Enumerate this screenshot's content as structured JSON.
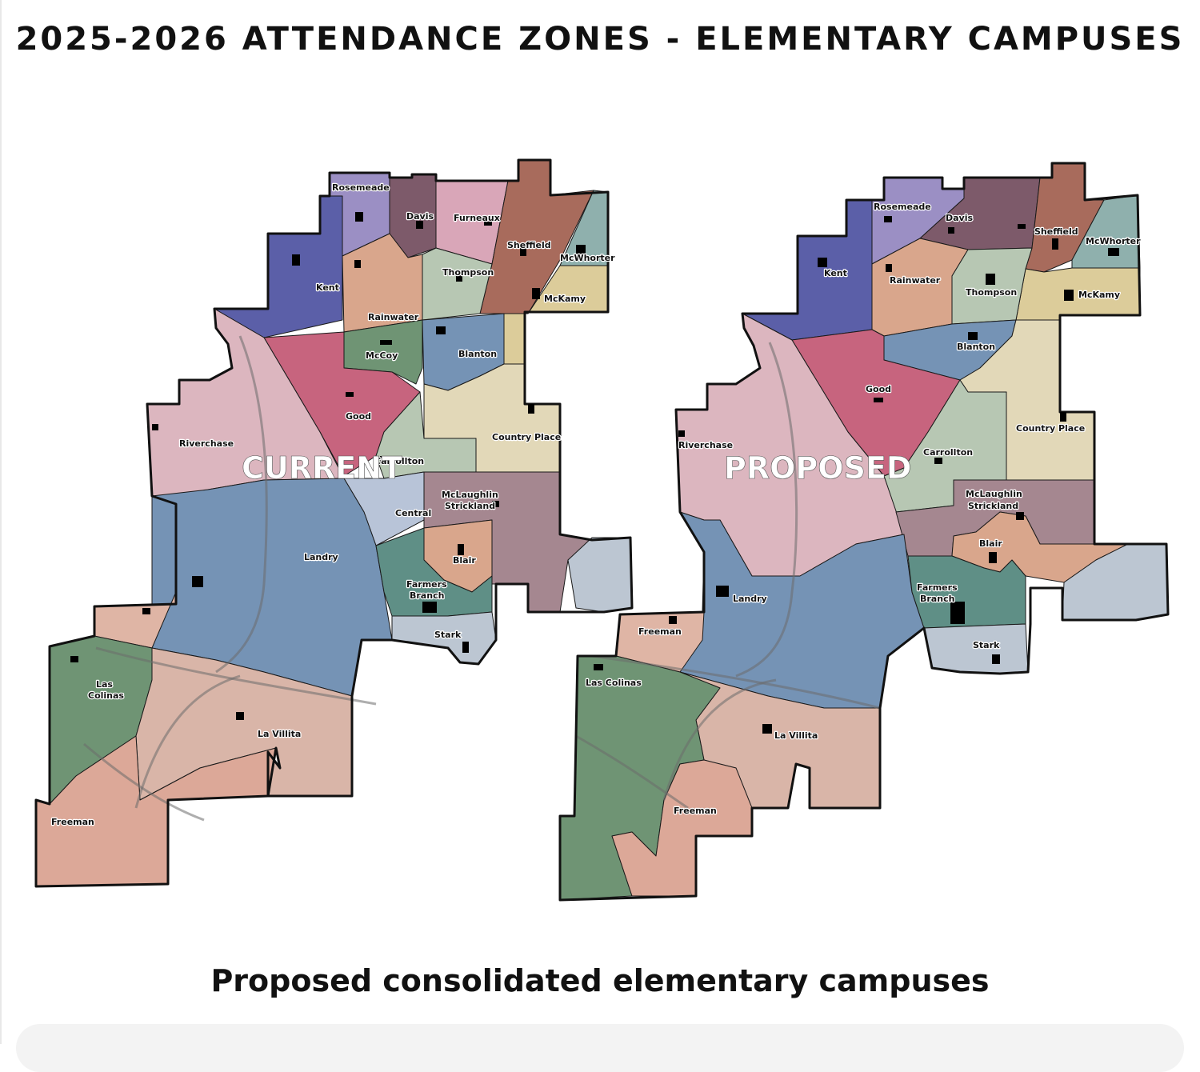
{
  "title": "2025-2026 ATTENDANCE ZONES - ELEMENTARY CAMPUSES",
  "caption": "Proposed consolidated elementary campuses",
  "maps": {
    "current": {
      "label": "CURRENT",
      "zones": {
        "rosemeade": "Rosemeade",
        "davis": "Davis",
        "furneaux": "Furneaux",
        "sheffield": "Sheffield",
        "mcwhorter": "McWhorter",
        "kent": "Kent",
        "thompson": "Thompson",
        "mckamy": "McKamy",
        "rainwater": "Rainwater",
        "mccoy": "McCoy",
        "blanton": "Blanton",
        "good": "Good",
        "riverchase": "Riverchase",
        "country_place": "Country Place",
        "carrollton": "Carrollton",
        "central": "Central",
        "mclaughlin_1": "McLaughlin",
        "mclaughlin_2": "Strickland",
        "blair": "Blair",
        "landry": "Landry",
        "farmers_branch_1": "Farmers",
        "farmers_branch_2": "Branch",
        "stark": "Stark",
        "las_colinas_1": "Las",
        "las_colinas_2": "Colinas",
        "la_villita": "La Villita",
        "freeman": "Freeman"
      }
    },
    "proposed": {
      "label": "PROPOSED",
      "zones": {
        "rosemeade": "Rosemeade",
        "davis": "Davis",
        "sheffield": "Sheffield",
        "mcwhorter": "McWhorter",
        "kent": "Kent",
        "rainwater": "Rainwater",
        "thompson": "Thompson",
        "mckamy": "McKamy",
        "blanton": "Blanton",
        "good": "Good",
        "riverchase": "Riverchase",
        "country_place": "Country Place",
        "carrollton": "Carrollton",
        "mclaughlin_1": "McLaughlin",
        "mclaughlin_2": "Strickland",
        "blair": "Blair",
        "landry": "Landry",
        "farmers_branch_1": "Farmers",
        "farmers_branch_2": "Branch",
        "freeman_north": "Freeman",
        "stark": "Stark",
        "las_colinas": "Las Colinas",
        "la_villita": "La Villita",
        "freeman": "Freeman"
      }
    }
  },
  "colors": {
    "navy": "#5b5fa8",
    "lavender": "#9b8fc4",
    "plum": "#7d5a6a",
    "pink": "#d9a6b8",
    "rust": "#a86b5c",
    "teal": "#8fb0ad",
    "salmon": "#d9a68c",
    "sage": "#b7c7b3",
    "tan": "#dccc9a",
    "green": "#6f9474",
    "blue": "#7593b5",
    "magenta": "#c7647e",
    "rosegray": "#dcb6bf",
    "cream": "#e2d8b8",
    "lightblue": "#b8c4d8",
    "mauve": "#a58790",
    "teal_dark": "#5f8f86",
    "gray": "#bcc6d2",
    "lightsalmon": "#dfb5a5"
  }
}
